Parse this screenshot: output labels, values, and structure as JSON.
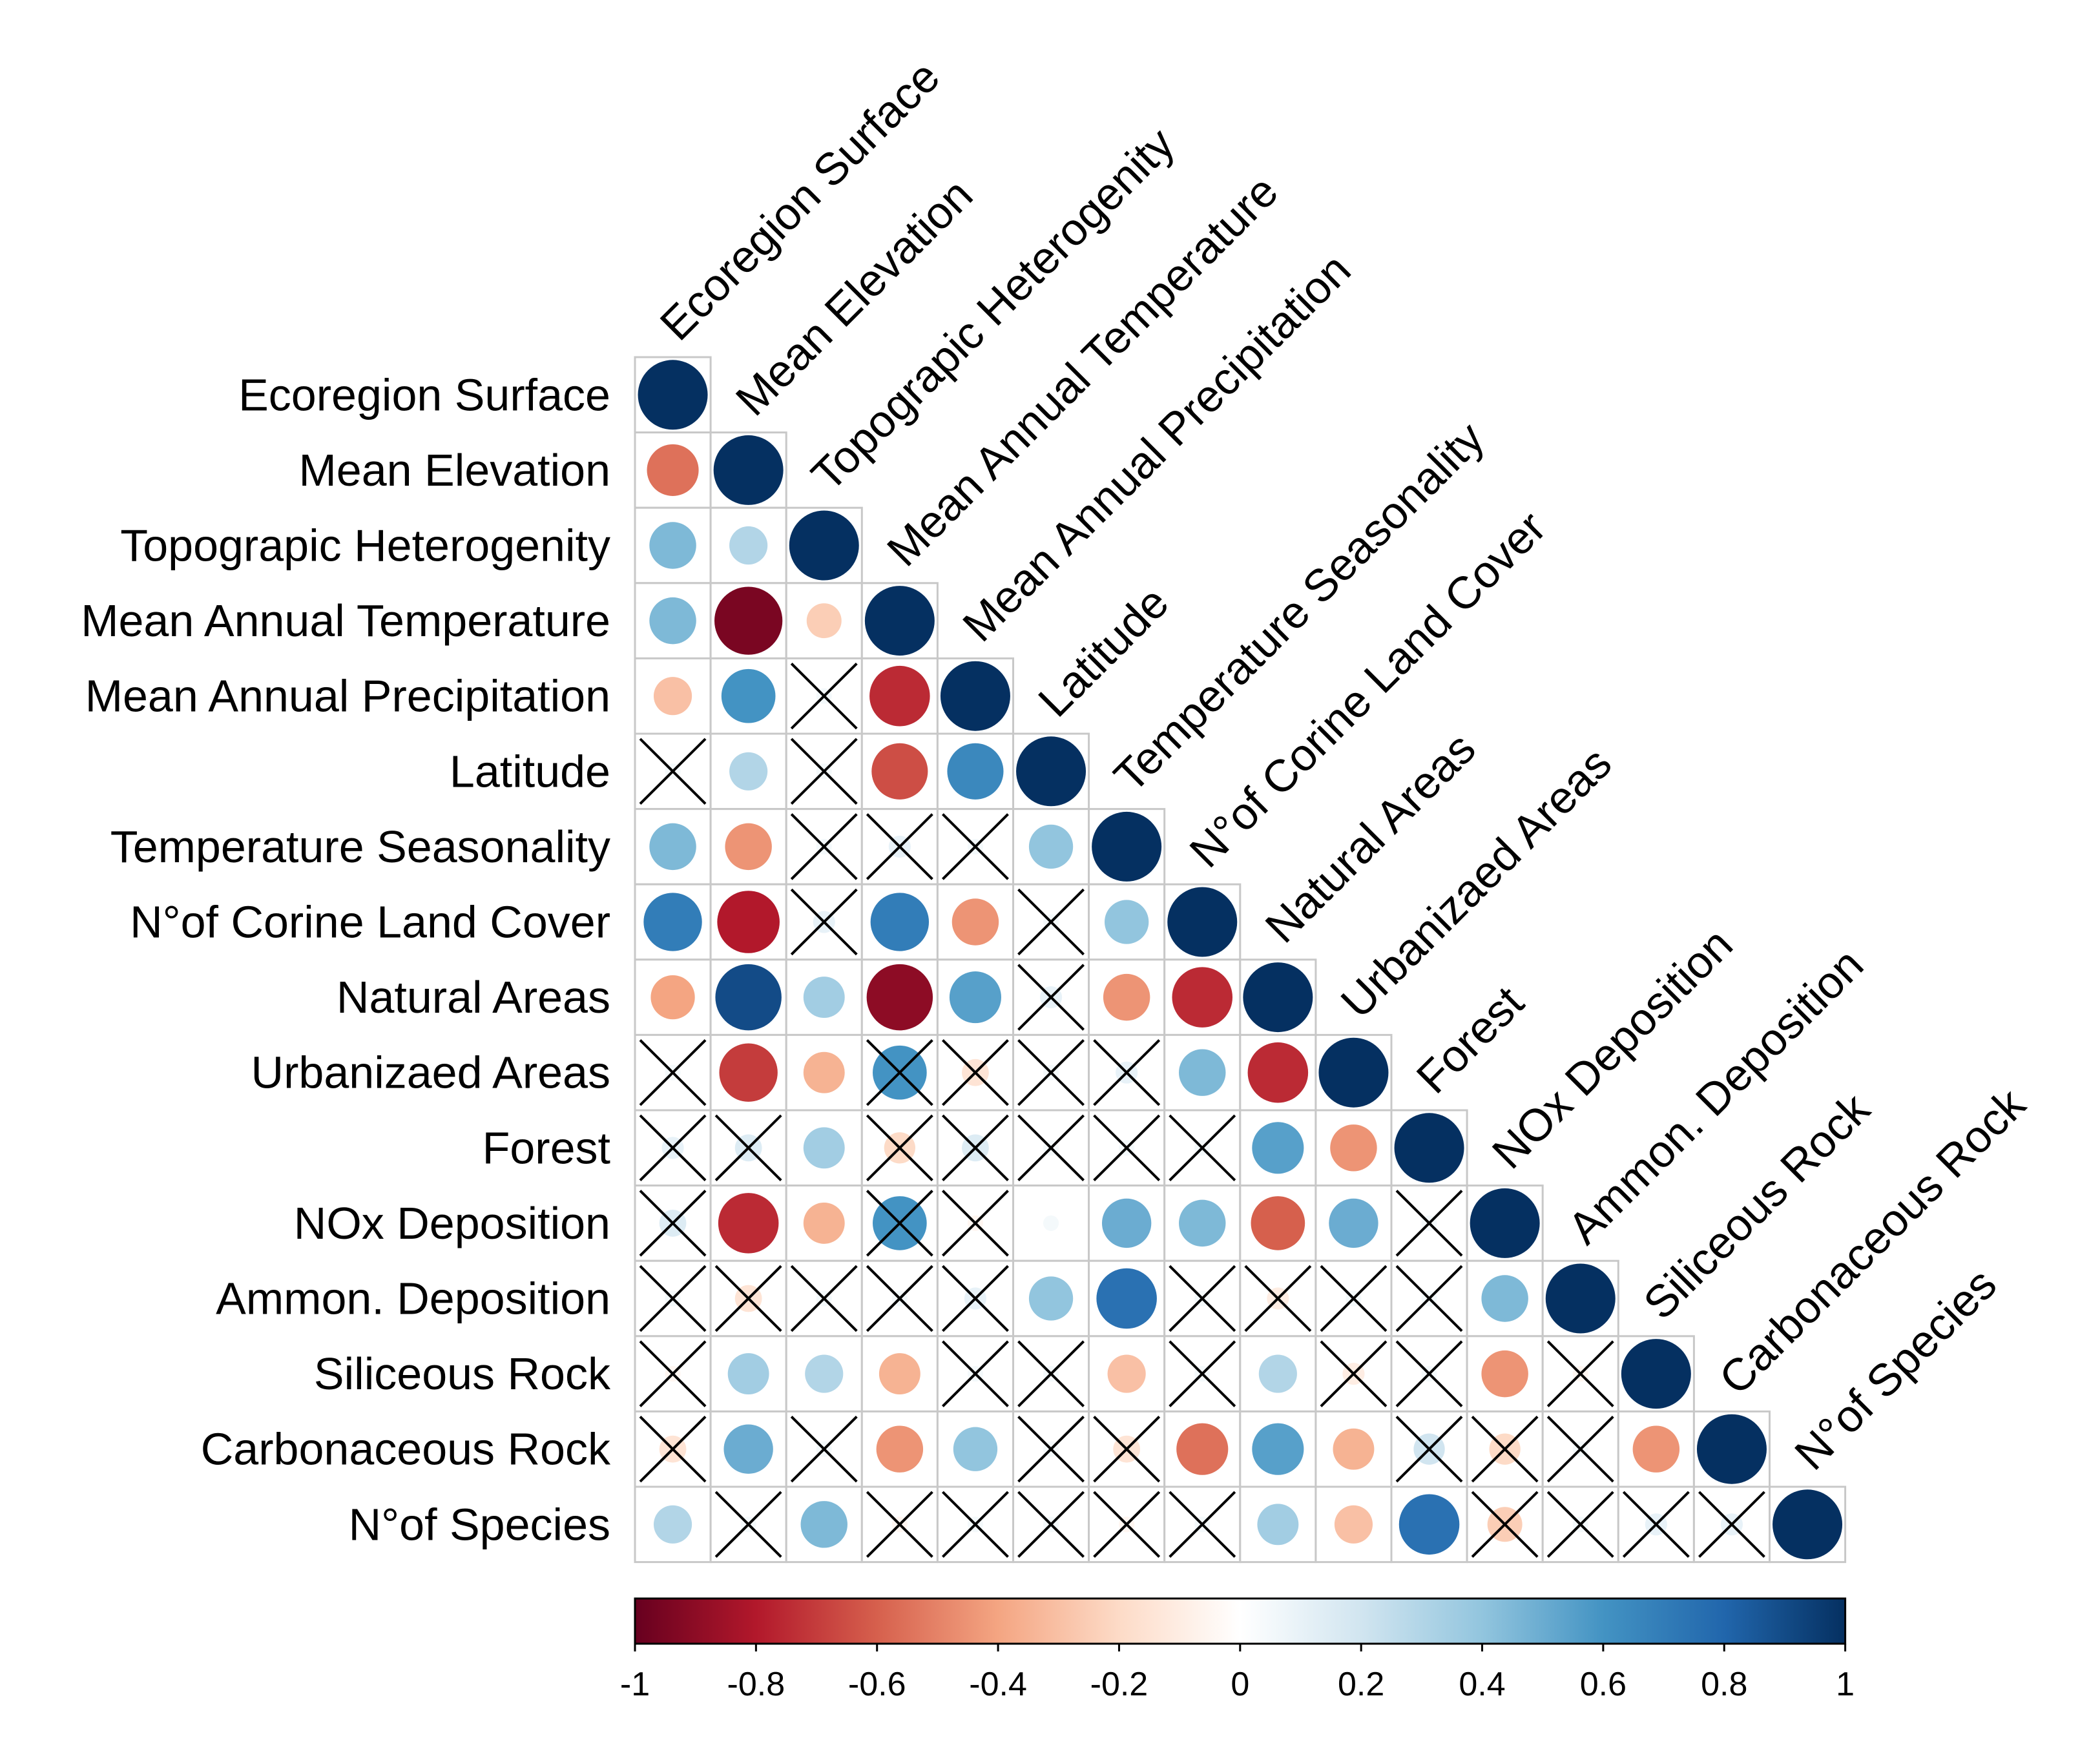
{
  "chart_data": {
    "type": "heatmap",
    "style": "lower-triangle correlation plot (circles sized and coloured by r; crosses mark non-significant pairs)",
    "variables": [
      "Ecoregion Surface",
      "Mean Elevation",
      "Topograpic Heterogenity",
      "Mean Annual Temperature",
      "Mean Annual Precipitation",
      "Latitude",
      "Temperature Seasonality",
      "N°of Corine Land Cover",
      "Natural Areas",
      "Urbanizaed Areas",
      "Forest",
      "NOx Deposition",
      "Ammon. Deposition",
      "Siliceous Rock",
      "Carbonaceous Rock",
      "N°of Species"
    ],
    "correlations": [
      [
        1
      ],
      [
        -0.55,
        1
      ],
      [
        0.45,
        0.3,
        1
      ],
      [
        0.45,
        -0.95,
        -0.25,
        1
      ],
      [
        -0.3,
        0.6,
        0.05,
        -0.75,
        1
      ],
      [
        0.05,
        0.3,
        0.05,
        -0.65,
        0.65,
        1
      ],
      [
        0.45,
        -0.45,
        0.05,
        0.1,
        0.05,
        0.4,
        1
      ],
      [
        0.7,
        -0.8,
        0.1,
        0.7,
        -0.45,
        0.05,
        0.4,
        1
      ],
      [
        -0.4,
        0.9,
        0.35,
        -0.9,
        0.55,
        0.1,
        -0.45,
        -0.75,
        1
      ],
      [
        0.05,
        -0.7,
        -0.35,
        0.6,
        -0.15,
        0.05,
        0.1,
        0.45,
        -0.75,
        1
      ],
      [
        0.1,
        0.15,
        0.35,
        -0.2,
        0.15,
        0.05,
        0.05,
        0.05,
        0.55,
        -0.45,
        1
      ],
      [
        0.15,
        -0.75,
        -0.35,
        0.6,
        -0.05,
        0.05,
        0.5,
        0.45,
        -0.6,
        0.5,
        0.05,
        1
      ],
      [
        0.05,
        -0.15,
        0.05,
        0.05,
        0.1,
        0.4,
        0.75,
        0.05,
        -0.1,
        0.05,
        0.05,
        0.45,
        1
      ],
      [
        -0.05,
        0.35,
        0.3,
        -0.35,
        0.05,
        0.05,
        -0.3,
        0.05,
        0.3,
        -0.1,
        0.05,
        -0.45,
        -0.05,
        1
      ],
      [
        -0.15,
        0.5,
        0.05,
        -0.45,
        0.4,
        0.05,
        -0.15,
        -0.55,
        0.55,
        -0.35,
        0.2,
        -0.2,
        0.05,
        -0.45,
        1
      ],
      [
        0.3,
        0.05,
        0.45,
        -0.05,
        0.05,
        0.05,
        -0.05,
        0.05,
        0.35,
        -0.3,
        0.75,
        -0.25,
        0.05,
        0.1,
        0.1,
        1
      ]
    ],
    "not_significant": [
      [
        4,
        2
      ],
      [
        5,
        0
      ],
      [
        5,
        2
      ],
      [
        6,
        2
      ],
      [
        6,
        3
      ],
      [
        6,
        4
      ],
      [
        7,
        2
      ],
      [
        7,
        5
      ],
      [
        8,
        5
      ],
      [
        9,
        0
      ],
      [
        9,
        3
      ],
      [
        9,
        4
      ],
      [
        9,
        5
      ],
      [
        9,
        6
      ],
      [
        10,
        0
      ],
      [
        10,
        1
      ],
      [
        10,
        3
      ],
      [
        10,
        4
      ],
      [
        10,
        5
      ],
      [
        10,
        6
      ],
      [
        10,
        7
      ],
      [
        11,
        0
      ],
      [
        11,
        3
      ],
      [
        11,
        4
      ],
      [
        11,
        10
      ],
      [
        12,
        0
      ],
      [
        12,
        1
      ],
      [
        12,
        2
      ],
      [
        12,
        3
      ],
      [
        12,
        4
      ],
      [
        12,
        7
      ],
      [
        12,
        8
      ],
      [
        12,
        9
      ],
      [
        12,
        10
      ],
      [
        13,
        0
      ],
      [
        13,
        4
      ],
      [
        13,
        5
      ],
      [
        13,
        7
      ],
      [
        13,
        9
      ],
      [
        13,
        10
      ],
      [
        13,
        12
      ],
      [
        14,
        0
      ],
      [
        14,
        2
      ],
      [
        14,
        5
      ],
      [
        14,
        6
      ],
      [
        14,
        10
      ],
      [
        14,
        11
      ],
      [
        14,
        12
      ],
      [
        15,
        1
      ],
      [
        15,
        3
      ],
      [
        15,
        4
      ],
      [
        15,
        5
      ],
      [
        15,
        6
      ],
      [
        15,
        7
      ],
      [
        15,
        11
      ],
      [
        15,
        12
      ],
      [
        15,
        13
      ],
      [
        15,
        14
      ]
    ],
    "colorbar": {
      "range": [
        -1,
        1
      ],
      "ticks": [
        "-1",
        "-0.8",
        "-0.6",
        "-0.4",
        "-0.2",
        "0",
        "0.2",
        "0.4",
        "0.6",
        "0.8",
        "1"
      ],
      "placement": "bottom"
    },
    "palette": [
      "#67001f",
      "#b2182b",
      "#d6604d",
      "#f4a582",
      "#fddbc7",
      "#ffffff",
      "#d1e5f0",
      "#92c5de",
      "#4393c3",
      "#2166ac",
      "#053061"
    ],
    "colors": {
      "grid": "#c8c8c8",
      "cross": "#000000",
      "text": "#000000"
    }
  }
}
